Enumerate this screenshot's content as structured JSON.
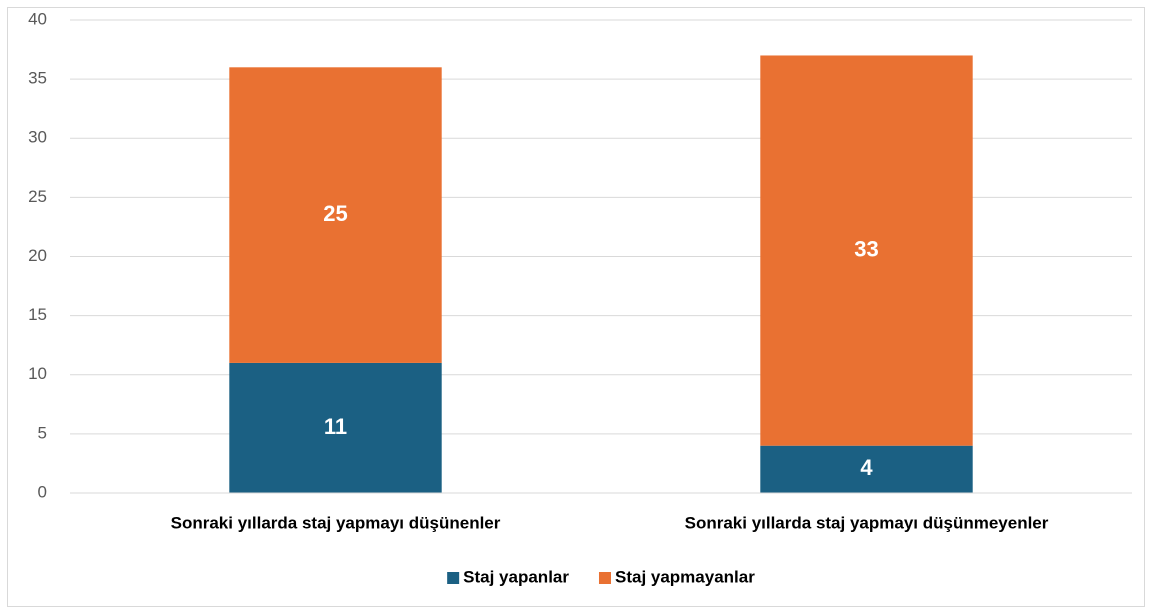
{
  "chart_data": {
    "type": "bar",
    "stacked": true,
    "categories": [
      "Sonraki yıllarda staj yapmayı düşünenler",
      "Sonraki yıllarda staj yapmayı düşünmeyenler"
    ],
    "series": [
      {
        "name": "Staj yapanlar",
        "color": "#1b6083",
        "values": [
          11,
          4
        ]
      },
      {
        "name": "Staj yapmayanlar",
        "color": "#e97132",
        "values": [
          25,
          33
        ]
      }
    ],
    "ylim": [
      0,
      40
    ],
    "yticks": [
      0,
      5,
      10,
      15,
      20,
      25,
      30,
      35,
      40
    ],
    "grid": true,
    "legend": "bottom"
  }
}
